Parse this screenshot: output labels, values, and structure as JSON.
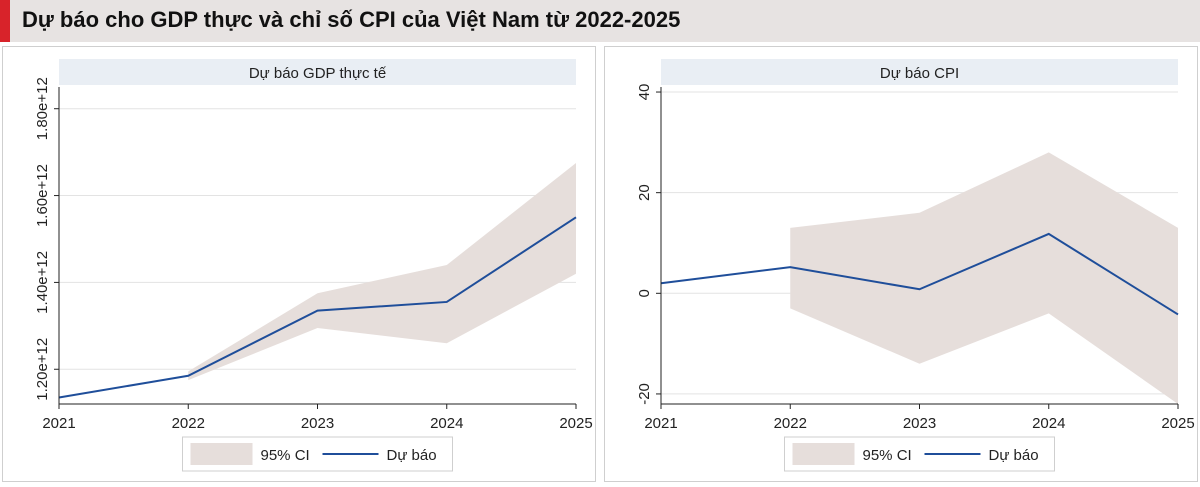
{
  "title": "Dự báo cho GDP thực và chỉ số CPI của Việt Nam từ 2022-2025",
  "colors": {
    "accent": "#d8232a",
    "band": "#e6dedb",
    "line": "#1f4e9a",
    "strip": "#e9eef4"
  },
  "chart_data": [
    {
      "type": "line",
      "title": "Dự báo GDP thực tế",
      "x": [
        2021,
        2022,
        2023,
        2024,
        2025
      ],
      "xlim": [
        2021,
        2025
      ],
      "ylim": [
        1120000000000.0,
        1850000000000.0
      ],
      "yticks": [
        1200000000000.0,
        1400000000000.0,
        1600000000000.0,
        1800000000000.0
      ],
      "ytick_labels": [
        "1.20e+12",
        "1.40e+12",
        "1.60e+12",
        "1.80e+12"
      ],
      "grid": true,
      "legend": {
        "position": "bottom",
        "band_label": "95% CI",
        "line_label": "Dự báo"
      },
      "series": [
        {
          "name": "Dự báo",
          "x": [
            2021,
            2022,
            2023,
            2024,
            2025
          ],
          "values": [
            1135000000000.0,
            1185000000000.0,
            1335000000000.0,
            1355000000000.0,
            1550000000000.0
          ]
        }
      ],
      "band": {
        "name": "95% CI",
        "x": [
          2022,
          2023,
          2024,
          2025
        ],
        "lower": [
          1175000000000.0,
          1295000000000.0,
          1260000000000.0,
          1420000000000.0
        ],
        "upper": [
          1195000000000.0,
          1375000000000.0,
          1440000000000.0,
          1675000000000.0
        ]
      }
    },
    {
      "type": "line",
      "title": "Dự báo CPI",
      "x": [
        2021,
        2022,
        2023,
        2024,
        2025
      ],
      "xlim": [
        2021,
        2025
      ],
      "ylim": [
        -22,
        41
      ],
      "yticks": [
        -20,
        0,
        20,
        40
      ],
      "ytick_labels": [
        "-20",
        "0",
        "20",
        "40"
      ],
      "grid": true,
      "legend": {
        "position": "bottom",
        "band_label": "95% CI",
        "line_label": "Dự báo"
      },
      "series": [
        {
          "name": "Dự báo",
          "x": [
            2021,
            2022,
            2023,
            2024,
            2025
          ],
          "values": [
            2,
            5.2,
            0.8,
            11.8,
            -4.2
          ]
        }
      ],
      "band": {
        "name": "95% CI",
        "x": [
          2022,
          2023,
          2024,
          2025
        ],
        "lower": [
          -3,
          -14,
          -4,
          -22
        ],
        "upper": [
          13,
          16,
          28,
          13
        ]
      }
    }
  ]
}
